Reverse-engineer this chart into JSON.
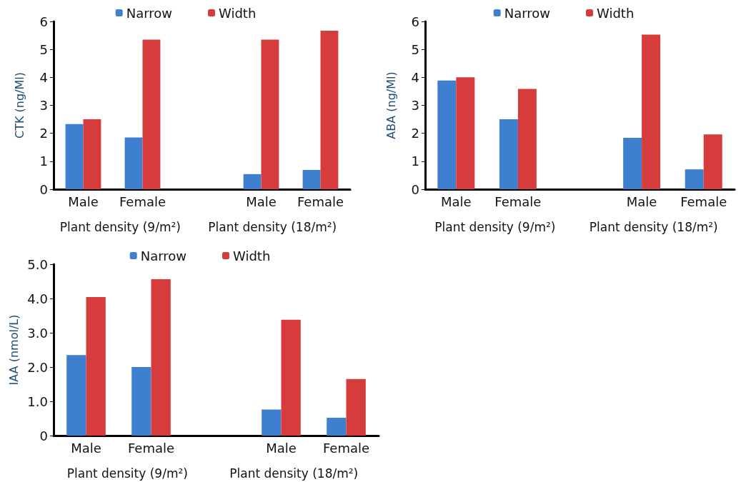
{
  "chart_data": [
    {
      "type": "bar",
      "ylabel": "CTK (ng/Ml)",
      "categories": [
        "Male",
        "Female",
        null,
        "Male",
        "Female"
      ],
      "series": [
        {
          "name": "Narrow",
          "color": "#3f7fd0",
          "values": [
            2.33,
            1.85,
            null,
            0.54,
            0.69
          ]
        },
        {
          "name": "Width",
          "color": "#d63c3c",
          "values": [
            2.5,
            5.35,
            null,
            5.35,
            5.67
          ]
        }
      ],
      "ylim": [
        0,
        6
      ],
      "yticks": [
        0,
        1,
        2,
        3,
        4,
        5,
        6
      ],
      "grid": false,
      "legend": "top",
      "annotations": [
        "Plant density (9/m²)",
        "Plant density (18/m²)"
      ]
    },
    {
      "type": "bar",
      "ylabel": "ABA (ng/Ml)",
      "categories": [
        "Male",
        "Female",
        null,
        "Male",
        "Female"
      ],
      "series": [
        {
          "name": "Narrow",
          "color": "#3f7fd0",
          "values": [
            3.89,
            2.5,
            null,
            1.84,
            0.71
          ]
        },
        {
          "name": "Width",
          "color": "#d63c3c",
          "values": [
            4.0,
            3.59,
            null,
            5.53,
            1.96
          ]
        }
      ],
      "ylim": [
        0,
        6
      ],
      "yticks": [
        0,
        1,
        2,
        3,
        4,
        5,
        6
      ],
      "grid": false,
      "legend": "top",
      "annotations": [
        "Plant density (9/m²)",
        "Plant density (18/m²)"
      ]
    },
    {
      "type": "bar",
      "ylabel": "IAA (nmol/L)",
      "categories": [
        "Male",
        "Female",
        null,
        "Male",
        "Female"
      ],
      "series": [
        {
          "name": "Narrow",
          "color": "#3f7fd0",
          "values": [
            2.35,
            2.0,
            null,
            0.76,
            0.52
          ]
        },
        {
          "name": "Width",
          "color": "#d63c3c",
          "values": [
            4.04,
            4.56,
            null,
            3.38,
            1.65
          ]
        }
      ],
      "ylim": [
        0,
        5
      ],
      "yticks": [
        0,
        {
          "value": 1,
          "label": "1.0"
        },
        {
          "value": 2,
          "label": "2.0"
        },
        {
          "value": 3,
          "label": "3.0"
        },
        {
          "value": 4,
          "label": "4.0"
        },
        {
          "value": 5,
          "label": "5.0"
        }
      ],
      "grid": false,
      "legend": "top",
      "annotations": [
        "Plant density (9/m²)",
        "Plant density (18/m²)"
      ]
    }
  ]
}
